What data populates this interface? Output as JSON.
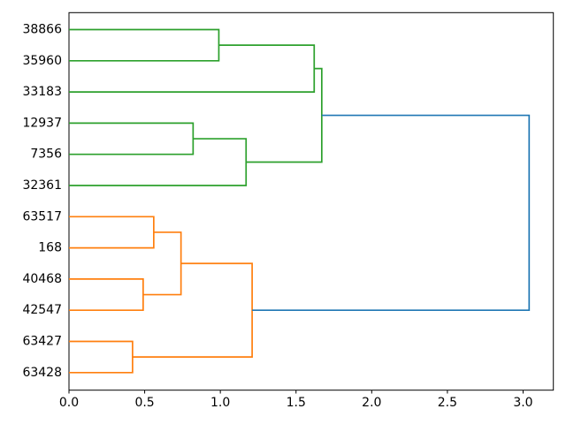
{
  "figure": {
    "background": "#ffffff"
  },
  "chart_data": {
    "type": "dendrogram",
    "orientation": "left-leaves-growing-right",
    "title": "",
    "xlabel": "",
    "ylabel": "",
    "grid": false,
    "leaves": [
      "38866",
      "35960",
      "33183",
      "12937",
      "7356",
      "32361",
      "63517",
      "168",
      "40468",
      "42547",
      "63427",
      "63428"
    ],
    "links": [
      {
        "a": "leaf:0",
        "b": "leaf:1",
        "distance": 0.99,
        "color": "green"
      },
      {
        "a": "leaf:3",
        "b": "leaf:4",
        "distance": 0.82,
        "color": "green"
      },
      {
        "a": "link:1",
        "b": "leaf:5",
        "distance": 1.17,
        "color": "green"
      },
      {
        "a": "link:0",
        "b": "leaf:2",
        "distance": 1.62,
        "color": "green"
      },
      {
        "a": "link:3",
        "b": "link:2",
        "distance": 1.67,
        "color": "green"
      },
      {
        "a": "leaf:6",
        "b": "leaf:7",
        "distance": 0.56,
        "color": "orange"
      },
      {
        "a": "leaf:8",
        "b": "leaf:9",
        "distance": 0.49,
        "color": "orange"
      },
      {
        "a": "link:5",
        "b": "link:6",
        "distance": 0.74,
        "color": "orange"
      },
      {
        "a": "leaf:10",
        "b": "leaf:11",
        "distance": 0.42,
        "color": "orange"
      },
      {
        "a": "link:7",
        "b": "link:8",
        "distance": 1.21,
        "color": "orange"
      },
      {
        "a": "link:4",
        "b": "link:9",
        "distance": 3.04,
        "color": "blue"
      }
    ],
    "x_axis": {
      "tick_labels": [
        "0.0",
        "0.5",
        "1.0",
        "1.5",
        "2.0",
        "2.5",
        "3.0"
      ],
      "tick_values": [
        0,
        0.5,
        1.0,
        1.5,
        2.0,
        2.5,
        3.0
      ],
      "range": [
        0,
        3.2
      ]
    },
    "colors": {
      "green": "#2ca02c",
      "orange": "#ff7f0e",
      "blue": "#1f77b4",
      "axis": "#000000",
      "text": "#000000"
    }
  }
}
